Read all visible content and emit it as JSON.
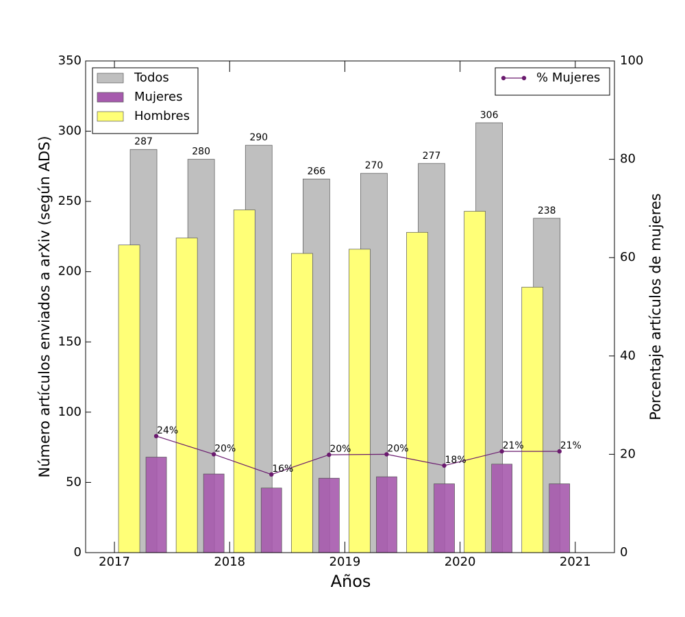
{
  "chart_data": {
    "type": "bar",
    "x_label": "Años",
    "y_label": "Número artículos enviados a arXiv (según ADS)",
    "y2_label": "Porcentaje artículos de mujeres",
    "x": [
      2017,
      2017.5,
      2018,
      2018.5,
      2019,
      2019.5,
      2020,
      2020.5
    ],
    "xlim": [
      2016.75,
      2021.34
    ],
    "xticks": [
      2017,
      2018,
      2019,
      2020,
      2021
    ],
    "ylim": [
      0,
      350
    ],
    "yticks": [
      0,
      50,
      100,
      150,
      200,
      250,
      300,
      350
    ],
    "y2lim": [
      0,
      100
    ],
    "y2ticks": [
      0,
      20,
      40,
      60,
      80,
      100
    ],
    "legend": "upper left",
    "legend2": "upper right",
    "series": [
      {
        "name": "Todos",
        "color": "#bfbfbf",
        "values": [
          287,
          280,
          290,
          266,
          270,
          277,
          306,
          238
        ]
      },
      {
        "name": "Mujeres",
        "color": "#a65aad",
        "values": [
          68,
          56,
          46,
          53,
          54,
          49,
          63,
          49
        ]
      },
      {
        "name": "Hombres",
        "color": "#ffff77",
        "values": [
          219,
          224,
          244,
          213,
          216,
          228,
          243,
          189
        ]
      },
      {
        "name": "% Mujeres",
        "type": "line",
        "axis": "y2",
        "color": "#6a1a6e",
        "values": [
          23.7,
          20.0,
          15.9,
          19.9,
          20.0,
          17.7,
          20.6,
          20.6
        ],
        "value_labels": [
          "24%",
          "20%",
          "16%",
          "20%",
          "20%",
          "18%",
          "21%",
          "21%"
        ]
      }
    ]
  }
}
